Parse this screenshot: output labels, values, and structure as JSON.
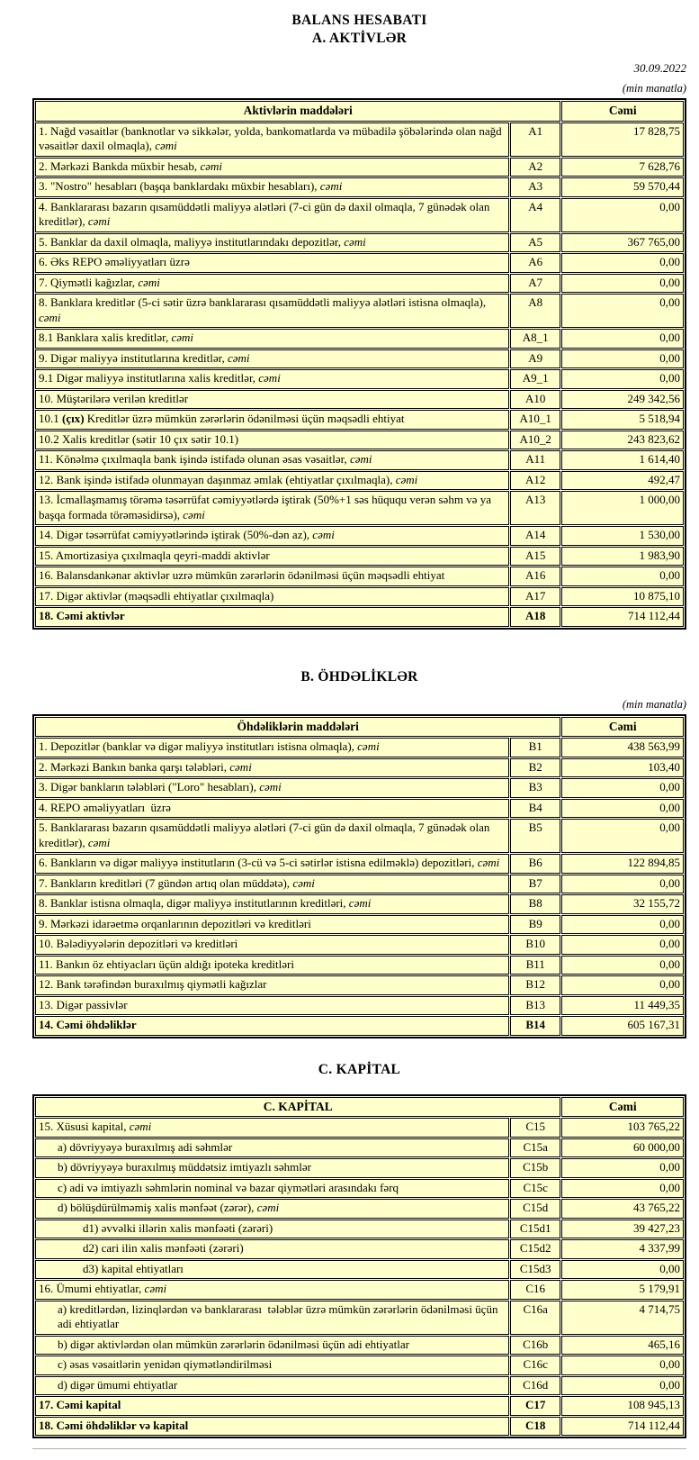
{
  "page": {
    "title": "BALANS HESABATI",
    "date": "30.09.2022",
    "unit_note": "(min manatla)"
  },
  "colors": {
    "cell_background": "#FFFFCC",
    "border": "#000000",
    "text": "#000000"
  },
  "tables": [
    {
      "heading": "A. AKTİVLƏR",
      "show_unit_note": true,
      "col_header": "Aktivlərin  maddələri",
      "value_header": "Cəmi",
      "rows": [
        {
          "parts": [
            {
              "t": "1. Nağd vəsaitlər (banknotlar və sikkələr, yolda, bankomatlarda və mübadilə şöbələrində olan nağd vəsaitlər daxil olmaqla), "
            },
            {
              "t": "cəmi",
              "i": true
            }
          ],
          "code": "A1",
          "value": "17 828,75"
        },
        {
          "parts": [
            {
              "t": "2. Mərkəzi Bankda müxbir hesab, "
            },
            {
              "t": "cəmi",
              "i": true
            }
          ],
          "code": "A2",
          "value": "7 628,76"
        },
        {
          "parts": [
            {
              "t": "3. \"Nostro\" hesabları (başqa banklardakı müxbir hesabları), "
            },
            {
              "t": "cəmi",
              "i": true
            }
          ],
          "code": "A3",
          "value": "59 570,44"
        },
        {
          "parts": [
            {
              "t": "4. Banklararası bazarın qısamüddətli maliyyə alətləri (7-ci gün də daxil olmaqla, 7 günədək olan kreditlər), "
            },
            {
              "t": "cəmi",
              "i": true
            }
          ],
          "code": "A4",
          "value": "0,00"
        },
        {
          "parts": [
            {
              "t": "5. Banklar da daxil olmaqla, maliyyə institutlarındakı depozitlər, "
            },
            {
              "t": "cəmi",
              "i": true
            }
          ],
          "code": "A5",
          "value": "367 765,00"
        },
        {
          "parts": [
            {
              "t": "6. Əks REPO əməliyyatları üzrə"
            }
          ],
          "code": "A6",
          "value": "0,00"
        },
        {
          "parts": [
            {
              "t": "7. Qiymətli kağızlar, "
            },
            {
              "t": "cəmi",
              "i": true
            }
          ],
          "code": "A7",
          "value": "0,00"
        },
        {
          "parts": [
            {
              "t": "8. Banklara kreditlər (5-ci sətir üzrə banklararası qısamüddətli maliyyə alətləri istisna olmaqla), "
            },
            {
              "t": "cəmi",
              "i": true
            }
          ],
          "code": "A8",
          "value": "0,00"
        },
        {
          "parts": [
            {
              "t": "8.1 Banklara xalis kreditlər, "
            },
            {
              "t": "cəmi",
              "i": true
            }
          ],
          "code": "A8_1",
          "value": "0,00"
        },
        {
          "parts": [
            {
              "t": "9. Digər maliyyə institutlarına kreditlər, "
            },
            {
              "t": "cəmi",
              "i": true
            }
          ],
          "code": "A9",
          "value": "0,00"
        },
        {
          "parts": [
            {
              "t": "9.1 Digər maliyyə institutlarına xalis kreditlər, "
            },
            {
              "t": "cəmi",
              "i": true
            }
          ],
          "code": "A9_1",
          "value": "0,00"
        },
        {
          "parts": [
            {
              "t": "10. Müştərilərə verilən kreditlər"
            }
          ],
          "code": "A10",
          "value": "249 342,56"
        },
        {
          "parts": [
            {
              "t": "10.1 "
            },
            {
              "t": "(çıx)",
              "b": true
            },
            {
              "t": " Kreditlər üzrə mümkün zərərlərin ödənilməsi üçün məqsədli ehtiyat"
            }
          ],
          "code": "A10_1",
          "value": "5 518,94"
        },
        {
          "parts": [
            {
              "t": "10.2 Xalis kreditlər (sətir 10 çıx sətir 10.1)"
            }
          ],
          "code": "A10_2",
          "value": "243 823,62"
        },
        {
          "parts": [
            {
              "t": "11. Könəlmə çıxılmaqla bank işində istifadə olunan əsas vəsaitlər, "
            },
            {
              "t": "cəmi",
              "i": true
            }
          ],
          "code": "A11",
          "value": "1 614,40"
        },
        {
          "parts": [
            {
              "t": "12. Bank işində istifadə olunmayan daşınmaz əmlak (ehtiyatlar çıxılmaqla), "
            },
            {
              "t": "cəmi",
              "i": true
            }
          ],
          "code": "A12",
          "value": "492,47"
        },
        {
          "parts": [
            {
              "t": "13. İcmallaşmamış törəmə təsərrüfat cəmiyyətlərdə iştirak (50%+1 səs hüququ verən səhm və ya başqa formada törəməsidirsə), "
            },
            {
              "t": "cəmi",
              "i": true
            }
          ],
          "code": "A13",
          "value": "1 000,00"
        },
        {
          "parts": [
            {
              "t": "14. Digər təsərrüfat cəmiyyətlərində iştirak (50%-dən az), "
            },
            {
              "t": "cəmi",
              "i": true
            }
          ],
          "code": "A14",
          "value": "1 530,00"
        },
        {
          "parts": [
            {
              "t": "15. Amortizasiya çıxılmaqla qeyri-maddi aktivlər"
            }
          ],
          "code": "A15",
          "value": "1 983,90"
        },
        {
          "parts": [
            {
              "t": "16. Balansdankənar aktivlər uzrə mümkün zərərlərin ödənilməsi üçün məqsədli ehtiyat"
            }
          ],
          "code": "A16",
          "value": "0,00"
        },
        {
          "parts": [
            {
              "t": "17. Digər aktivlər (məqsədli ehtiyatlar çıxılmaqla)"
            }
          ],
          "code": "A17",
          "value": "10 875,10"
        },
        {
          "parts": [
            {
              "t": "18. Cəmi aktivlər"
            }
          ],
          "code": "A18",
          "value": "714 112,44",
          "total": true
        }
      ]
    },
    {
      "heading": "B. ÖHDƏLİKLƏR",
      "show_unit_note": true,
      "col_header": "Öhdəliklərin maddələri",
      "value_header": "Cəmi",
      "rows": [
        {
          "parts": [
            {
              "t": "1. Depozitlər (banklar və digər maliyyə institutları istisna olmaqla), "
            },
            {
              "t": "cəmi",
              "i": true
            }
          ],
          "code": "B1",
          "value": "438 563,99"
        },
        {
          "parts": [
            {
              "t": "2. Mərkəzi Bankın banka qarşı tələbləri, "
            },
            {
              "t": "cəmi",
              "i": true
            }
          ],
          "code": "B2",
          "value": "103,40"
        },
        {
          "parts": [
            {
              "t": "3. Digər bankların tələbləri (\"Loro\" hesabları), "
            },
            {
              "t": "cəmi",
              "i": true
            }
          ],
          "code": "B3",
          "value": "0,00"
        },
        {
          "parts": [
            {
              "t": "4. REPO əməliyyatları  üzrə"
            }
          ],
          "code": "B4",
          "value": "0,00"
        },
        {
          "parts": [
            {
              "t": "5. Banklararası bazarın qısamüddətli maliyyə alətləri (7-ci gün də daxil olmaqla, 7 günədək olan kreditlər), "
            },
            {
              "t": "cəmi",
              "i": true
            }
          ],
          "code": "B5",
          "value": "0,00"
        },
        {
          "parts": [
            {
              "t": "6. Bankların və digər maliyyə institutların (3-cü və 5-ci sətirlər istisna edilməklə) depozitləri, "
            },
            {
              "t": "cəmi",
              "i": true
            }
          ],
          "code": "B6",
          "value": "122 894,85"
        },
        {
          "parts": [
            {
              "t": "7. Bankların kreditləri (7 gündən artıq olan müddətə), "
            },
            {
              "t": "cəmi",
              "i": true
            }
          ],
          "code": "B7",
          "value": "0,00"
        },
        {
          "parts": [
            {
              "t": "8. Banklar istisna olmaqla, digər maliyyə institutlarının kreditləri, "
            },
            {
              "t": "cəmi",
              "i": true
            }
          ],
          "code": "B8",
          "value": "32 155,72"
        },
        {
          "parts": [
            {
              "t": "9. Mərkəzi idarəetmə orqanlarının depozitləri və kreditləri"
            }
          ],
          "code": "B9",
          "value": "0,00"
        },
        {
          "parts": [
            {
              "t": "10. Bələdiyyələrin depozitləri və kreditləri"
            }
          ],
          "code": "B10",
          "value": "0,00"
        },
        {
          "parts": [
            {
              "t": "11. Bankın öz ehtiyacları üçün aldığı ipoteka kreditləri"
            }
          ],
          "code": "B11",
          "value": "0,00"
        },
        {
          "parts": [
            {
              "t": "12. Bank tərəfindən buraxılmış qiymətli kağızlar"
            }
          ],
          "code": "B12",
          "value": "0,00"
        },
        {
          "parts": [
            {
              "t": "13. Digər passivlər"
            }
          ],
          "code": "B13",
          "value": "11 449,35"
        },
        {
          "parts": [
            {
              "t": "14. Cəmi öhdəliklər"
            }
          ],
          "code": "B14",
          "value": "605 167,31",
          "total": true
        }
      ]
    },
    {
      "heading": "C. KAPİTAL",
      "show_unit_note": false,
      "col_header": "C. KAPİTAL",
      "value_header": "Cəmi",
      "rows": [
        {
          "parts": [
            {
              "t": "15. Xüsusi kapital, "
            },
            {
              "t": "cəmi",
              "i": true
            }
          ],
          "code": "C15",
          "value": "103 765,22"
        },
        {
          "parts": [
            {
              "t": "a) dövriyyəyə buraxılmış adi səhmlər"
            }
          ],
          "code": "C15a",
          "value": "60 000,00",
          "ind": 1
        },
        {
          "parts": [
            {
              "t": "b) dövriyyəyə buraxılmış müddətsiz imtiyazlı səhmlər"
            }
          ],
          "code": "C15b",
          "value": "0,00",
          "ind": 1
        },
        {
          "parts": [
            {
              "t": "c) adi və imtiyazlı səhmlərin nominal və bazar qiymətləri arasındakı fərq"
            }
          ],
          "code": "C15c",
          "value": "0,00",
          "ind": 1
        },
        {
          "parts": [
            {
              "t": "d) bölüşdürülməmiş xalis mənfəət (zərər), "
            },
            {
              "t": "cəmi",
              "i": true
            }
          ],
          "code": "C15d",
          "value": "43 765,22",
          "ind": 1
        },
        {
          "parts": [
            {
              "t": "d1) əvvəlki illərin xalis mənfəəti (zərəri)"
            }
          ],
          "code": "C15d1",
          "value": "39 427,23",
          "ind": 2
        },
        {
          "parts": [
            {
              "t": "d2) cari ilin xalis mənfəəti (zərəri)"
            }
          ],
          "code": "C15d2",
          "value": "4 337,99",
          "ind": 2
        },
        {
          "parts": [
            {
              "t": "d3) kapital ehtiyatları"
            }
          ],
          "code": "C15d3",
          "value": "0,00",
          "ind": 2
        },
        {
          "parts": [
            {
              "t": "16. Ümumi ehtiyatlar, "
            },
            {
              "t": "cəmi",
              "i": true
            }
          ],
          "code": "C16",
          "value": "5 179,91"
        },
        {
          "parts": [
            {
              "t": "a) kreditlərdən, lizinqlərdən və banklararası  tələblər üzrə mümkün zərərlərin ödənilməsi üçün adi ehtiyatlar"
            }
          ],
          "code": "C16a",
          "value": "4 714,75",
          "ind": 1
        },
        {
          "parts": [
            {
              "t": "b) digər aktivlərdən olan mümkün zərərlərin ödənilməsi üçün adi ehtiyatlar"
            }
          ],
          "code": "C16b",
          "value": "465,16",
          "ind": 1
        },
        {
          "parts": [
            {
              "t": "c) əsas vəsaitlərin yenidən qiymətləndirilməsi"
            }
          ],
          "code": "C16c",
          "value": "0,00",
          "ind": 1
        },
        {
          "parts": [
            {
              "t": "d) digər ümumi ehtiyatlar"
            }
          ],
          "code": "C16d",
          "value": "0,00",
          "ind": 1
        },
        {
          "parts": [
            {
              "t": "17. Cəmi kapital"
            }
          ],
          "code": "C17",
          "value": "108 945,13",
          "total": true
        },
        {
          "parts": [
            {
              "t": "18. Cəmi öhdəliklər və kapital"
            }
          ],
          "code": "C18",
          "value": "714 112,44",
          "total": true
        }
      ]
    }
  ]
}
